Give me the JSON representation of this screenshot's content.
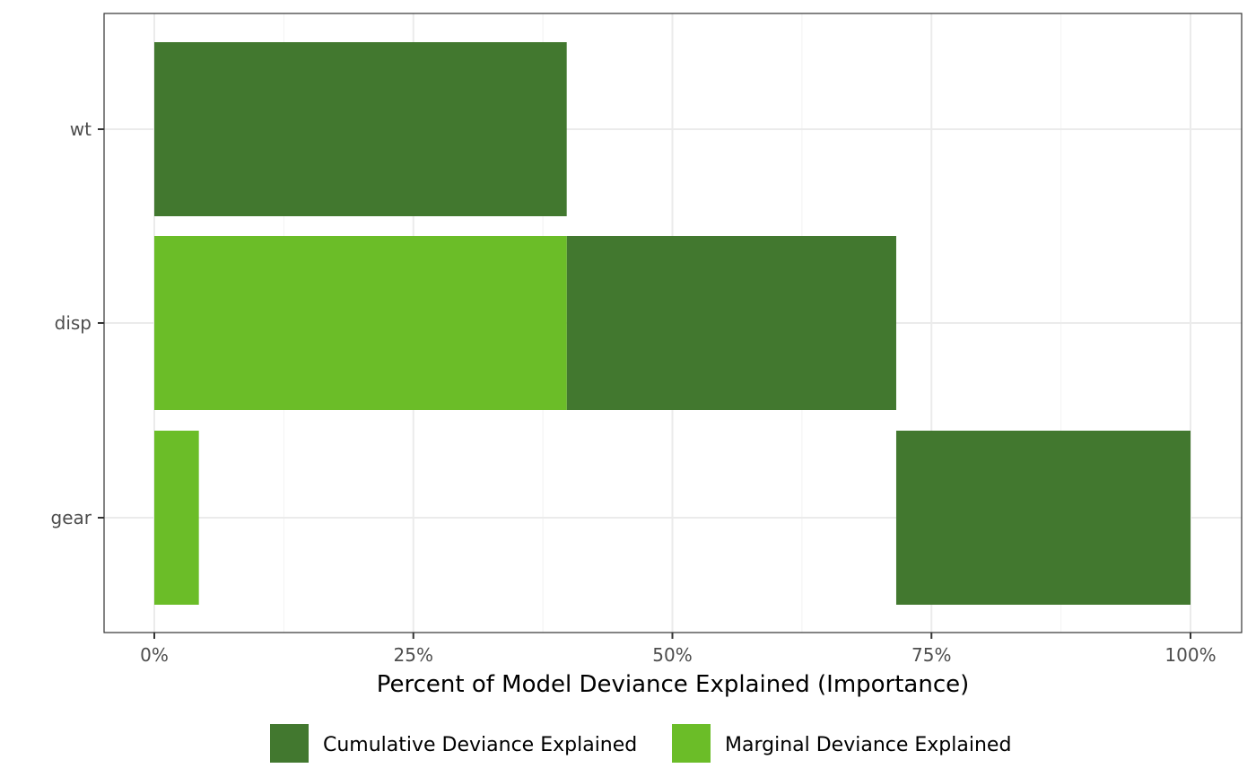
{
  "chart_data": {
    "type": "bar",
    "orientation": "horizontal",
    "categories": [
      "wt",
      "disp",
      "gear"
    ],
    "xlabel": "Percent of Model Deviance Explained (Importance)",
    "ylabel": "",
    "xlim": [
      -0.05,
      1.05
    ],
    "x_ticks": [
      0,
      0.25,
      0.5,
      0.75,
      1.0
    ],
    "x_tick_labels": [
      "0%",
      "25%",
      "50%",
      "75%",
      "100%"
    ],
    "grid": true,
    "legend_position": "bottom",
    "series": [
      {
        "name": "Cumulative Deviance Explained",
        "color": "#42782f",
        "bars": [
          {
            "category": "wt",
            "start": 0,
            "end": 0.398
          },
          {
            "category": "disp",
            "start": 0.398,
            "end": 0.716
          },
          {
            "category": "gear",
            "start": 0.716,
            "end": 1.0
          }
        ]
      },
      {
        "name": "Marginal Deviance Explained",
        "color": "#6bbd28",
        "bars": [
          {
            "category": "wt",
            "start": 0,
            "end": 0
          },
          {
            "category": "disp",
            "start": 0,
            "end": 0.398
          },
          {
            "category": "gear",
            "start": 0,
            "end": 0.043
          }
        ]
      }
    ]
  }
}
